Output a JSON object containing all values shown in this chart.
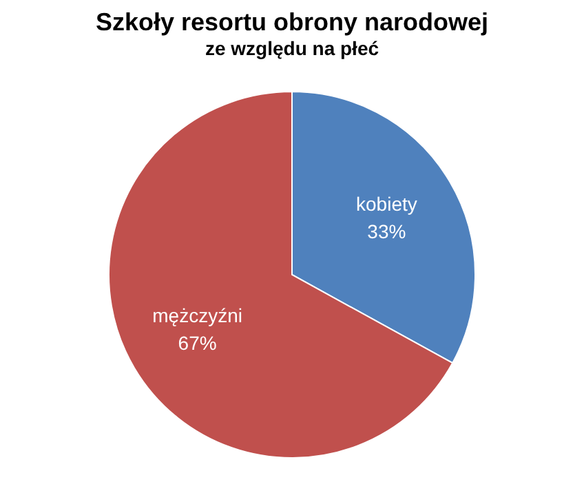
{
  "chart_data": {
    "type": "pie",
    "title": "Szkoły resortu obrony narodowej",
    "subtitle": "ze względu na płeć",
    "categories": [
      "kobiety",
      "mężczyźni"
    ],
    "values": [
      33,
      67
    ],
    "colors": [
      "#4f81bd",
      "#c0504d"
    ],
    "value_labels": [
      "33%",
      "67%"
    ],
    "legend": false
  }
}
